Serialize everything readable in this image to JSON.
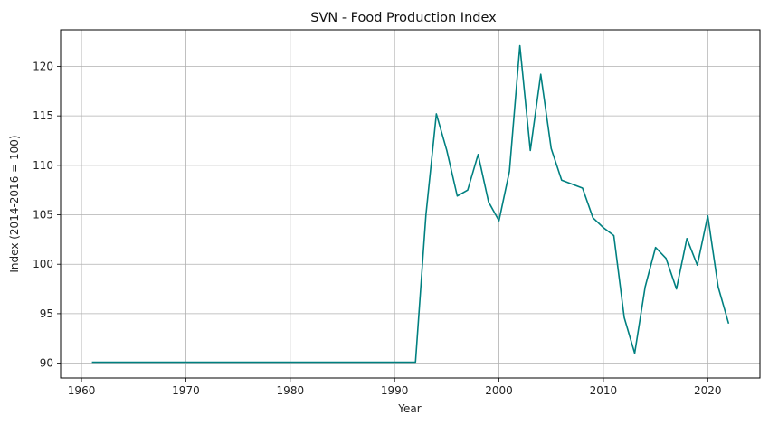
{
  "chart_data": {
    "type": "line",
    "title": "SVN - Food Production Index",
    "xlabel": "Year",
    "ylabel": "Index (2014-2016 = 100)",
    "xlim": [
      1958,
      2025
    ],
    "ylim": [
      88.5,
      123.7
    ],
    "x_ticks": [
      1960,
      1970,
      1980,
      1990,
      2000,
      2010,
      2020
    ],
    "y_ticks": [
      90,
      95,
      100,
      105,
      110,
      115,
      120
    ],
    "grid": true,
    "line_color": "#008080",
    "series": [
      {
        "x": [
          1961,
          1962,
          1963,
          1964,
          1965,
          1966,
          1967,
          1968,
          1969,
          1970,
          1971,
          1972,
          1973,
          1974,
          1975,
          1976,
          1977,
          1978,
          1979,
          1980,
          1981,
          1982,
          1983,
          1984,
          1985,
          1986,
          1987,
          1988,
          1989,
          1990,
          1991,
          1992,
          1993,
          1994,
          1995,
          1996,
          1997,
          1998,
          1999,
          2000,
          2001,
          2002,
          2003,
          2004,
          2005,
          2006,
          2007,
          2008,
          2009,
          2010,
          2011,
          2012,
          2013,
          2014,
          2015,
          2016,
          2017,
          2018,
          2019,
          2020,
          2021,
          2022
        ],
        "values": [
          90.1,
          90.1,
          90.1,
          90.1,
          90.1,
          90.1,
          90.1,
          90.1,
          90.1,
          90.1,
          90.1,
          90.1,
          90.1,
          90.1,
          90.1,
          90.1,
          90.1,
          90.1,
          90.1,
          90.1,
          90.1,
          90.1,
          90.1,
          90.1,
          90.1,
          90.1,
          90.1,
          90.1,
          90.1,
          90.1,
          90.1,
          90.1,
          105.0,
          115.2,
          111.5,
          106.9,
          107.5,
          111.1,
          106.3,
          104.4,
          109.4,
          122.1,
          111.5,
          119.2,
          111.7,
          108.5,
          108.1,
          107.7,
          104.7,
          103.7,
          102.9,
          94.6,
          91.0,
          97.7,
          101.7,
          100.6,
          97.5,
          102.6,
          99.9,
          104.9,
          97.7,
          94.0
        ]
      }
    ]
  }
}
